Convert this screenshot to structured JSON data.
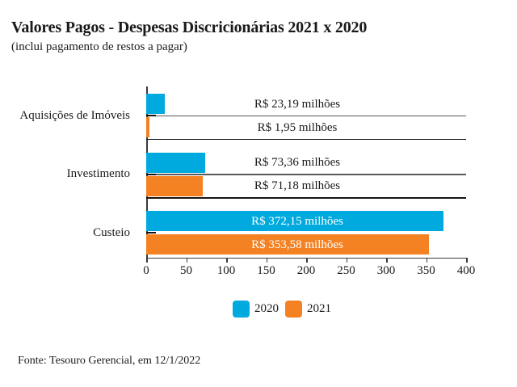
{
  "header": {
    "title": "Valores Pagos - Despesas Discricionárias 2021 x 2020",
    "subtitle": "(inclui pagamento de restos a pagar)"
  },
  "footer": {
    "source": "Fonte: Tesouro Gerencial, em 12/1/2022"
  },
  "colors": {
    "series_2020": "#00aade",
    "series_2021": "#f48222",
    "leader_line": "#595959",
    "separator_line": "#151515",
    "axis": "#3a3a3a",
    "text": "#1a1a1a",
    "inside_label_text": "#ffffff"
  },
  "chart_data": {
    "type": "bar",
    "orientation": "horizontal",
    "title": "Valores Pagos - Despesas Discricionárias 2021 x 2020",
    "subtitle": "(inclui pagamento de restos a pagar)",
    "categories": [
      "Aquisições de Imóveis",
      "Investimento",
      "Custeio"
    ],
    "series": [
      {
        "name": "2020",
        "color": "#00aade",
        "values": [
          23.19,
          73.36,
          372.15
        ],
        "labels": [
          "R$ 23,19 milhões",
          "R$ 73,36 milhões",
          "R$ 372,15 milhões"
        ]
      },
      {
        "name": "2021",
        "color": "#f48222",
        "values": [
          1.95,
          71.18,
          353.58
        ],
        "labels": [
          "R$ 1,95 milhões",
          "R$ 71,18 milhões",
          "R$ 353,58 milhões"
        ]
      }
    ],
    "xlim": [
      0,
      400
    ],
    "xticks": [
      0,
      50,
      100,
      150,
      200,
      250,
      300,
      350,
      400
    ],
    "grid": false,
    "legend_position": "bottom"
  }
}
